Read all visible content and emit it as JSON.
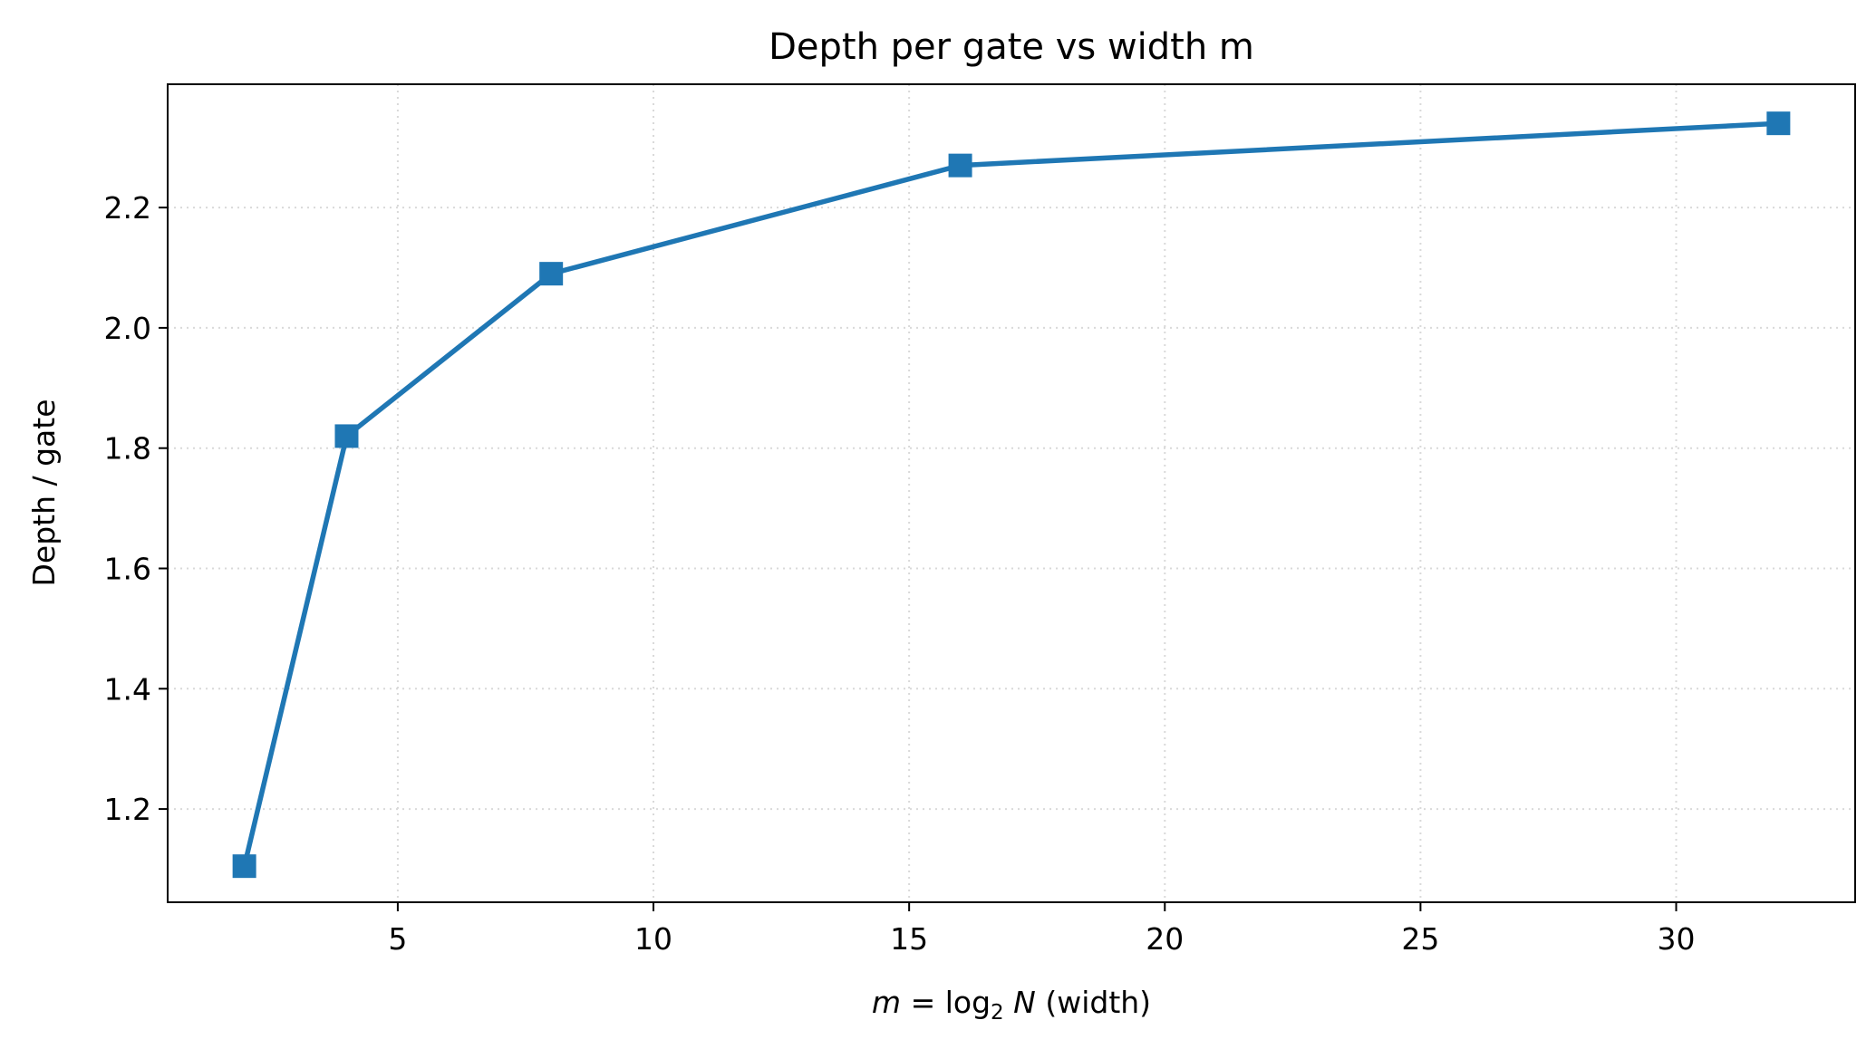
{
  "chart_data": {
    "type": "line",
    "title": "Depth per gate vs width m",
    "xlabel": {
      "var": "m",
      "eq": " = ",
      "fn": "log",
      "sub": "2",
      "arg": "N",
      "suffix": " (width)"
    },
    "ylabel": "Depth / gate",
    "xlim": [
      0.5,
      33.5
    ],
    "ylim": [
      1.045,
      2.405
    ],
    "xticks": [
      5,
      10,
      15,
      20,
      25,
      30
    ],
    "yticks": [
      1.2,
      1.4,
      1.6,
      1.8,
      2.0,
      2.2
    ],
    "xtick_labels": [
      "5",
      "10",
      "15",
      "20",
      "25",
      "30"
    ],
    "ytick_labels": [
      "1.2",
      "1.4",
      "1.6",
      "1.8",
      "2.0",
      "2.2"
    ],
    "grid": true,
    "legend": "none",
    "series": [
      {
        "x": [
          2,
          4,
          8,
          16,
          32
        ],
        "y": [
          1.105,
          1.82,
          2.09,
          2.27,
          2.34
        ],
        "color": "#1f77b4",
        "marker": "square"
      }
    ]
  }
}
